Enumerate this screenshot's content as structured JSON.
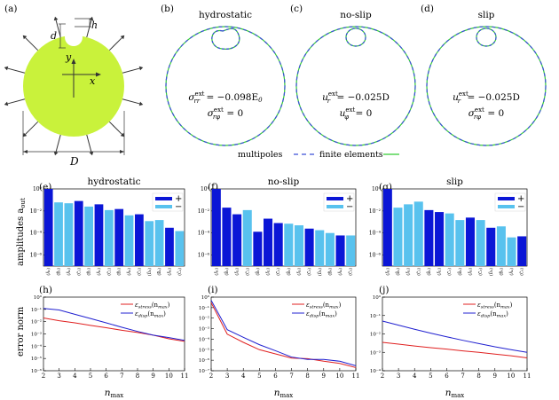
{
  "figure": {
    "panel_labels": [
      "(a)",
      "(b)",
      "(c)",
      "(d)",
      "(e)",
      "(f)",
      "(g)",
      "(h)",
      "(i)",
      "(j)"
    ],
    "schematic": {
      "labels": {
        "d": "d",
        "h": "h",
        "y": "y",
        "x": "x",
        "D": "D"
      },
      "colors": {
        "disk": "#c9f23b",
        "arrow": "#333333"
      }
    },
    "shapes": [
      {
        "title": "hydrostatic",
        "line1_a": "σ",
        "line1_sup": "ext",
        "line1_sub": "rr",
        "line1_b": " = −0.098E",
        "line1_sub2": "0",
        "line2_a": "σ",
        "line2_sup": "ext",
        "line2_sub": "rφ",
        "line2_b": " = 0"
      },
      {
        "title": "no-slip",
        "line1_a": "u",
        "line1_sup": "ext",
        "line1_sub": "r",
        "line1_b": " = −0.025D",
        "line1_sub2": "",
        "line2_a": "u",
        "line2_sup": "ext",
        "line2_sub": "φ",
        "line2_b": " = 0"
      },
      {
        "title": "slip",
        "line1_a": "u",
        "line1_sup": "ext",
        "line1_sub": "r",
        "line1_b": " = −0.025D",
        "line1_sub2": "",
        "line2_a": "σ",
        "line2_sup": "ext",
        "line2_sub": "rφ",
        "line2_b": " = 0"
      }
    ],
    "shape_legend": {
      "multipoles": "multipoles",
      "finite_elements": "finite elements",
      "multipoles_color": "#3b4fd8",
      "fe_color": "#33cc33"
    },
    "bar_colors": {
      "plus": "#0b16d6",
      "minus": "#58c2ee"
    },
    "bar_legend": {
      "plus": "+",
      "minus": "−"
    },
    "bar_ylabel": "amplitudes a",
    "bar_ylabel_sub": "out",
    "error_ylabel": "error norm",
    "error_xlabel": "n",
    "error_xlabel_sub": "max",
    "error_legend": {
      "stress": "ε",
      "stress_sub": "stress",
      "disp": "ε",
      "disp_sub": "disp",
      "arg": "(n",
      "arg_sub": "max",
      "close": ")"
    },
    "line_colors": {
      "stress": "#e02020",
      "disp": "#2020d0"
    }
  },
  "chart_data": [
    {
      "type": "bar",
      "title": "hydrostatic",
      "ylabel": "amplitudes a_out",
      "ylim": [
        1e-07,
        1
      ],
      "log_y": true,
      "yticks": [
        "10⁰",
        "10⁻²",
        "10⁻⁴",
        "10⁻⁶"
      ],
      "categories": [
        "(Ã₀)",
        "(B̃₁)",
        "(Ã₁)",
        "(C̃₁)",
        "(B̃₂)",
        "(Ã₂)",
        "(C̃₂)",
        "(B̃₃)",
        "(Ã₃)",
        "(C̃₃)",
        "(D̃₄)",
        "(B̃₄)",
        "(Ã₄)",
        "(C̃₄)"
      ],
      "values": [
        1.0,
        0.06,
        0.05,
        0.08,
        0.025,
        0.04,
        0.012,
        0.015,
        0.004,
        0.005,
        0.0012,
        0.0015,
        0.0003,
        0.00015
      ],
      "signs": [
        "+",
        "-",
        "-",
        "+",
        "-",
        "+",
        "-",
        "+",
        "-",
        "+",
        "-",
        "-",
        "+",
        "-"
      ]
    },
    {
      "type": "bar",
      "title": "no-slip",
      "ylim": [
        1e-07,
        1
      ],
      "log_y": true,
      "yticks": [
        "10⁰",
        "10⁻²",
        "10⁻⁴",
        "10⁻⁶"
      ],
      "categories": [
        "(Ã₀)",
        "(B̃₁)",
        "(Ã₁)",
        "(C̃₁)",
        "(B̃₂)",
        "(Ã₂)",
        "(C̃₂)",
        "(B̃₃)",
        "(Ã₃)",
        "(C̃₃)",
        "(D̃₄)",
        "(B̃₄)",
        "(Ã₄)",
        "(C̃₄)"
      ],
      "values": [
        1.0,
        0.02,
        0.005,
        0.012,
        0.00013,
        0.002,
        0.0008,
        0.0007,
        0.0005,
        0.00025,
        0.00018,
        0.0001,
        6e-05,
        6e-05
      ],
      "signs": [
        "+",
        "+",
        "+",
        "-",
        "+",
        "+",
        "+",
        "-",
        "-",
        "+",
        "-",
        "-",
        "+",
        "-"
      ]
    },
    {
      "type": "bar",
      "title": "slip",
      "ylim": [
        1e-07,
        1
      ],
      "log_y": true,
      "yticks": [
        "10⁰",
        "10⁻²",
        "10⁻⁴",
        "10⁻⁶"
      ],
      "categories": [
        "(Ã₀)",
        "(B̃₁)",
        "(Ã₁)",
        "(C̃₁)",
        "(B̃₂)",
        "(Ã₂)",
        "(C̃₂)",
        "(B̃₃)",
        "(Ã₃)",
        "(C̃₃)",
        "(D̃₄)",
        "(B̃₄)",
        "(Ã₄)",
        "(C̃₄)"
      ],
      "values": [
        1.0,
        0.02,
        0.04,
        0.07,
        0.012,
        0.008,
        0.006,
        0.0015,
        0.0025,
        0.0015,
        0.0003,
        0.0004,
        4e-05,
        5e-05
      ],
      "signs": [
        "+",
        "-",
        "-",
        "-",
        "+",
        "+",
        "-",
        "-",
        "+",
        "-",
        "+",
        "-",
        "-",
        "+"
      ]
    },
    {
      "type": "line",
      "xlabel": "n_max",
      "ylabel": "error norm",
      "xlim": [
        2,
        11
      ],
      "ylim": [
        1e-06,
        1
      ],
      "log_y": true,
      "xticks": [
        "2",
        "3",
        "4",
        "5",
        "6",
        "7",
        "8",
        "9",
        "10",
        "11"
      ],
      "yticks": [
        "10⁰",
        "10⁻¹",
        "10⁻²",
        "10⁻³",
        "10⁻⁴",
        "10⁻⁵",
        "10⁻⁶"
      ],
      "x": [
        2,
        3,
        4,
        5,
        6,
        7,
        8,
        9,
        10,
        11
      ],
      "series": [
        {
          "name": "ε_stress(n_max)",
          "values": [
            0.02,
            0.012,
            0.008,
            0.005,
            0.0032,
            0.002,
            0.0013,
            0.0008,
            0.0004,
            0.00025
          ]
        },
        {
          "name": "ε_disp(n_max)",
          "values": [
            0.12,
            0.09,
            0.04,
            0.018,
            0.008,
            0.0035,
            0.0016,
            0.0008,
            0.0005,
            0.0003
          ]
        }
      ]
    },
    {
      "type": "line",
      "xlabel": "n_max",
      "xlim": [
        2,
        11
      ],
      "ylim": [
        1e-07,
        1
      ],
      "log_y": true,
      "xticks": [
        "2",
        "3",
        "4",
        "5",
        "6",
        "7",
        "8",
        "9",
        "10",
        "11"
      ],
      "yticks": [
        "10⁰",
        "10⁻¹",
        "10⁻²",
        "10⁻³",
        "10⁻⁴",
        "10⁻⁵",
        "10⁻⁶",
        "10⁻⁷"
      ],
      "x": [
        2,
        3,
        4,
        5,
        6,
        7,
        8,
        9,
        10,
        11
      ],
      "series": [
        {
          "name": "ε_stress(n_max)",
          "values": [
            0.3,
            0.0003,
            5e-05,
            1e-05,
            4e-06,
            1.6e-06,
            1.4e-06,
            8e-07,
            5e-07,
            2e-07
          ]
        },
        {
          "name": "ε_disp(n_max)",
          "values": [
            0.5,
            0.0008,
            0.00015,
            3e-05,
            8e-06,
            2e-06,
            1.2e-06,
            1.2e-06,
            8e-07,
            3e-07
          ]
        }
      ]
    },
    {
      "type": "line",
      "xlabel": "n_max",
      "xlim": [
        2,
        11
      ],
      "ylim": [
        0.0001,
        1
      ],
      "log_y": true,
      "xticks": [
        "2",
        "3",
        "4",
        "5",
        "6",
        "7",
        "8",
        "9",
        "10",
        "11"
      ],
      "yticks": [
        "10⁰",
        "10⁻¹",
        "10⁻²",
        "10⁻³",
        "10⁻⁴"
      ],
      "x": [
        2,
        3,
        4,
        5,
        6,
        7,
        8,
        9,
        10,
        11
      ],
      "series": [
        {
          "name": "ε_stress(n_max)",
          "values": [
            0.0035,
            0.0028,
            0.0022,
            0.0018,
            0.0015,
            0.0012,
            0.001,
            0.0008,
            0.00065,
            0.0005
          ]
        },
        {
          "name": "ε_disp(n_max)",
          "values": [
            0.05,
            0.03,
            0.018,
            0.011,
            0.007,
            0.0045,
            0.003,
            0.002,
            0.0014,
            0.001
          ]
        }
      ]
    }
  ]
}
